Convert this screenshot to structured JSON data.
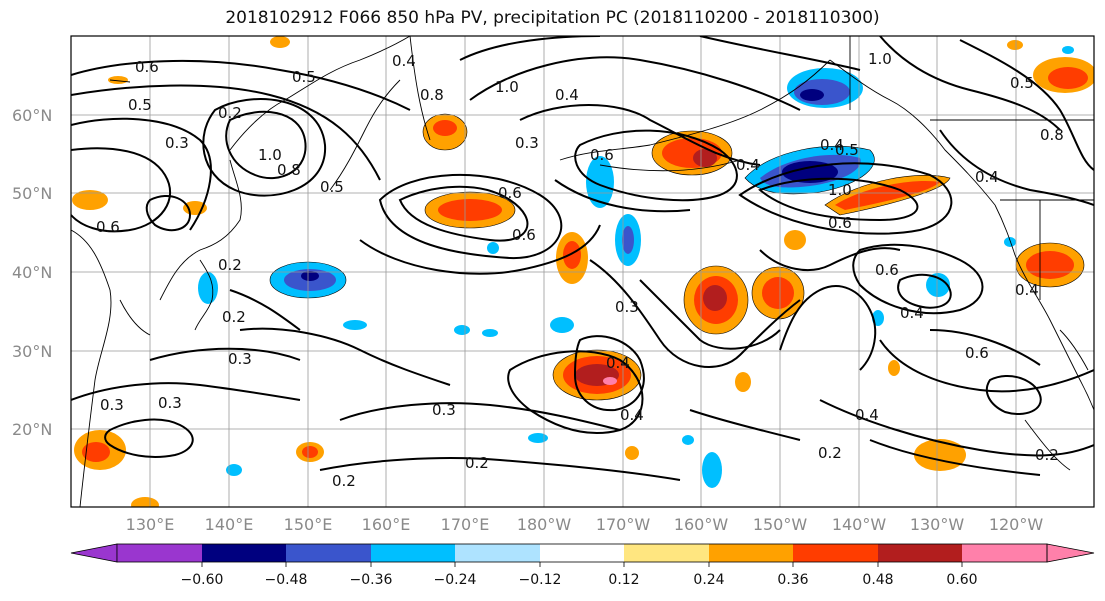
{
  "title": "2018102912 F066 850 hPa PV, precipitation PC (2018110200 - 2018110300)",
  "lat_labels": [
    "60°N",
    "50°N",
    "40°N",
    "30°N",
    "20°N"
  ],
  "lon_labels": [
    "130°E",
    "140°E",
    "150°E",
    "160°E",
    "170°E",
    "180°W",
    "170°W",
    "160°W",
    "150°W",
    "140°W",
    "130°W",
    "120°W"
  ],
  "colorbar": {
    "ticks": [
      "−0.60",
      "−0.48",
      "−0.36",
      "−0.24",
      "−0.12",
      "0.12",
      "0.24",
      "0.36",
      "0.48",
      "0.60"
    ],
    "colors": [
      "#9a36cf",
      "#00007f",
      "#3a55cc",
      "#00bfff",
      "#aee3ff",
      "#ffffff",
      "#ffe680",
      "#ffa100",
      "#ff3d00",
      "#b21e1e",
      "#ff80aa"
    ]
  },
  "contour_labels": [
    "0.6",
    "0.5",
    "0.4",
    "0.8",
    "1.0",
    "0.3",
    "0.5",
    "0.3",
    "0.4",
    "0.6",
    "0.8",
    "0.4",
    "1.0",
    "0.2",
    "0.6",
    "0.5",
    "1.0",
    "0.6",
    "0.4",
    "0.5",
    "1.0",
    "0.6",
    "0.4",
    "0.6",
    "0.3",
    "0.2",
    "0.3",
    "0.3",
    "0.3",
    "0.3",
    "0.2",
    "0.2",
    "0.4",
    "0.4",
    "0.2",
    "0.4",
    "0.6",
    "0.4",
    "0.4",
    "0.6",
    "0.2",
    "0.8",
    "0.5",
    "0.2"
  ]
}
